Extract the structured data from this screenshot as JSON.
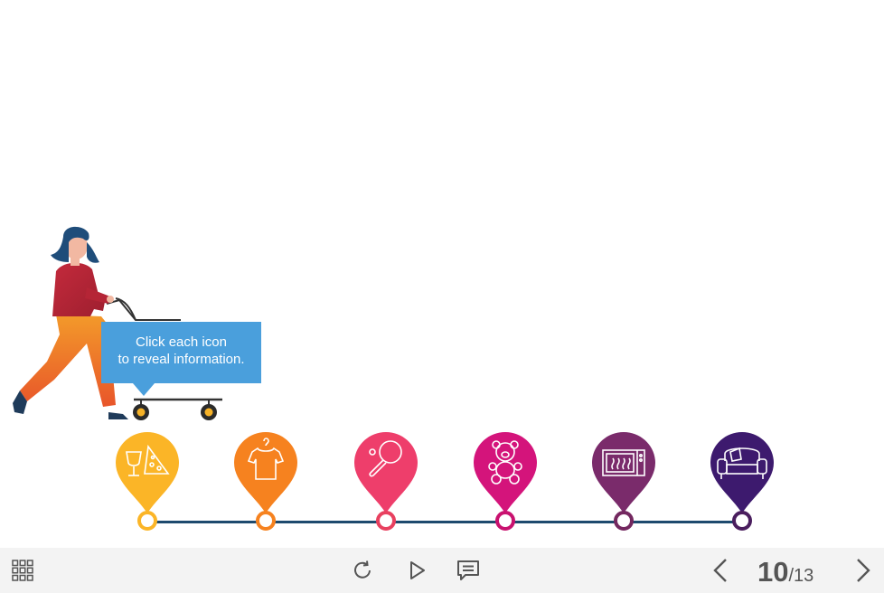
{
  "slide": {
    "callout_line1": "Click each icon",
    "callout_line2": "to reveal information."
  },
  "markers": [
    {
      "name": "food",
      "icon": "wine-pizza-icon",
      "color": "#fbb527",
      "ring": "#fbb527"
    },
    {
      "name": "clothing",
      "icon": "tshirt-icon",
      "color": "#f6821f",
      "ring": "#f6821f"
    },
    {
      "name": "sports",
      "icon": "ping-pong-icon",
      "color": "#ee3e6b",
      "ring": "#e8405f"
    },
    {
      "name": "toys",
      "icon": "teddy-bear-icon",
      "color": "#d4147b",
      "ring": "#c9116f"
    },
    {
      "name": "appliances",
      "icon": "microwave-icon",
      "color": "#7a2b6b",
      "ring": "#73285f"
    },
    {
      "name": "furniture",
      "icon": "armchair-icon",
      "color": "#3d1a6e",
      "ring": "#4a1e5e"
    }
  ],
  "colors": {
    "timeline": "#1e4a6e",
    "callout": "#4a9fdc",
    "footer_bg": "#f3f3f3",
    "footer_icons": "#555555"
  },
  "footer": {
    "menu_icon": "grid-menu-icon",
    "replay_icon": "replay-icon",
    "play_icon": "play-icon",
    "notes_icon": "speech-bubble-icon",
    "prev_icon": "chevron-left-icon",
    "next_icon": "chevron-right-icon",
    "page_current": "10",
    "page_separator": "/",
    "page_total": "13"
  }
}
